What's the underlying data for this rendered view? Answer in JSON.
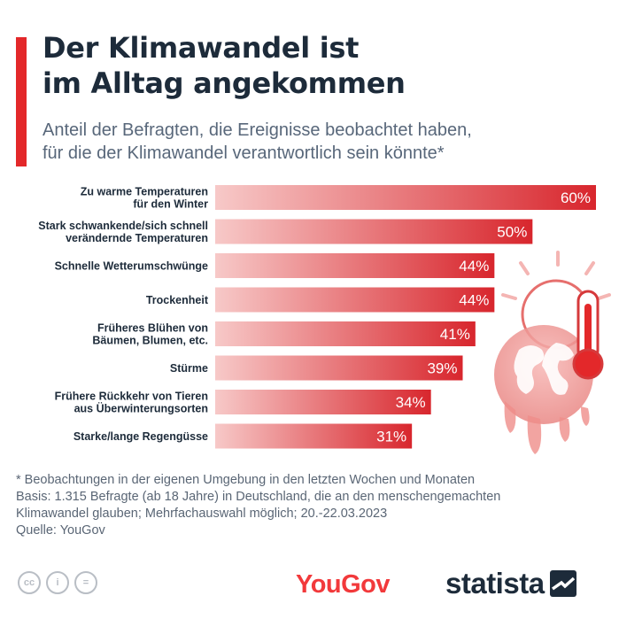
{
  "header": {
    "title_line1": "Der Klimawandel ist",
    "title_line2": "im Alltag angekommen",
    "subtitle_line1": "Anteil der Befragten, die Ereignisse beobachtet haben,",
    "subtitle_line2": "für die der Klimawandel verantwortlich sein könnte*"
  },
  "chart_data": {
    "type": "bar",
    "orientation": "horizontal",
    "categories": [
      [
        "Zu warme Temperaturen",
        "für den Winter"
      ],
      [
        "Stark schwankende/sich schnell",
        "verändernde Temperaturen"
      ],
      [
        "Schnelle Wetterumschwünge"
      ],
      [
        "Trockenheit"
      ],
      [
        "Früheres Blühen von",
        "Bäumen, Blumen, etc."
      ],
      [
        "Stürme"
      ],
      [
        "Frühere Rückkehr von Tieren",
        "aus Überwinterungsorten"
      ],
      [
        "Starke/lange Regengüsse"
      ]
    ],
    "values": [
      60,
      50,
      44,
      44,
      41,
      39,
      34,
      31
    ],
    "value_labels": [
      "60%",
      "50%",
      "44%",
      "44%",
      "41%",
      "39%",
      "34%",
      "31%"
    ],
    "unit": "%",
    "xlim": [
      0,
      60
    ],
    "grid": false,
    "legend": "none",
    "colors": {
      "bar_start": "#f7c9c8",
      "bar_end": "#d8262d",
      "label": "#ffffff"
    }
  },
  "footnote": {
    "line1": "* Beobachtungen in der eigenen Umgebung in den letzten Wochen und Monaten",
    "line2": "Basis: 1.315 Befragte (ab 18 Jahre) in Deutschland, die an den menschengemachten",
    "line3": "Klimawandel glauben; Mehrfachauswahl möglich; 20.-22.03.2023",
    "line4": "Quelle: YouGov"
  },
  "footer": {
    "license_icons": [
      "cc-icon",
      "by-person-icon",
      "nd-equals-icon"
    ],
    "license_glyphs": [
      "cc",
      "i",
      "="
    ],
    "source_logo": "YouGov",
    "brand_logo": "statista"
  },
  "colors": {
    "accent": "#e3282a",
    "title": "#1d2b3a",
    "subtitle": "#58677a",
    "yougov": "#f2393b"
  }
}
